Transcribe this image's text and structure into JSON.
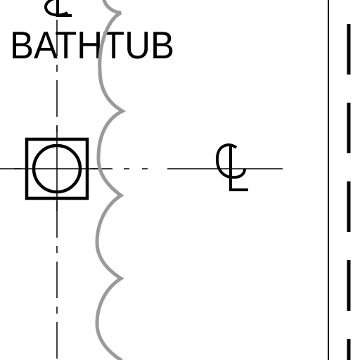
{
  "drawing": {
    "label": "BATHTUB",
    "centerline_symbol": "centerline-symbol",
    "drain_symbol": "drain-square-circle",
    "curtain_symbol": "scalloped-shower-curtain",
    "wall_line": "solid-wall-line",
    "hidden_line": "dashed-hidden-line",
    "colors": {
      "ink": "#000000",
      "curtain": "#9a9a9a",
      "background": "#ffffff"
    }
  }
}
